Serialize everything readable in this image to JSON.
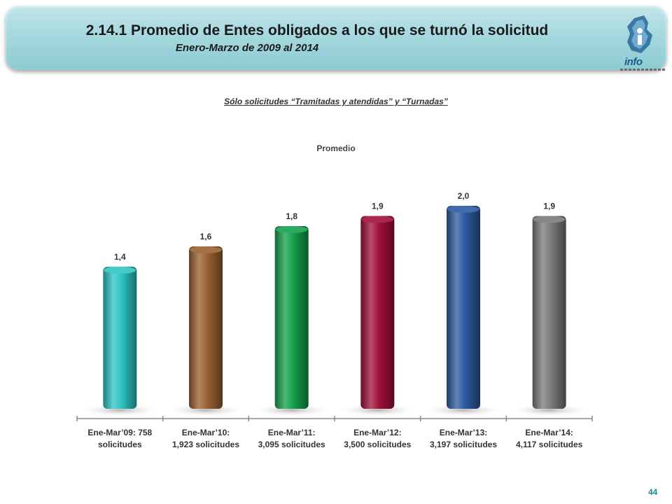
{
  "header": {
    "title": "2.14.1 Promedio de Entes obligados a los que se turnó la solicitud",
    "subtitle": "Enero-Marzo de 2009 al 2014",
    "logo_text": "info"
  },
  "page_number": "44",
  "chart_data": {
    "type": "bar",
    "title": "Promedio",
    "subtitle": "Sólo solicitudes “Tramitadas y atendidas” y “Turnadas”",
    "categories": [
      [
        "Ene-Mar’09: 758",
        "solicitudes"
      ],
      [
        "Ene-Mar’10:",
        "1,923 solicitudes"
      ],
      [
        "Ene-Mar’11:",
        "3,095 solicitudes"
      ],
      [
        "Ene-Mar’12:",
        "3,500 solicitudes"
      ],
      [
        "Ene-Mar’13:",
        "3,197 solicitudes"
      ],
      [
        "Ene-Mar’14:",
        "4,117 solicitudes"
      ]
    ],
    "values": [
      1.4,
      1.6,
      1.8,
      1.9,
      2.0,
      1.9
    ],
    "value_labels": [
      "1,4",
      "1,6",
      "1,8",
      "1,9",
      "2,0",
      "1,9"
    ],
    "colors": [
      "#2ec4c4",
      "#9a6030",
      "#14a04c",
      "#a0103a",
      "#2c5aa0",
      "#7a7a7a"
    ],
    "ylim": [
      0,
      2.0
    ],
    "grid": false,
    "legend": "none"
  }
}
